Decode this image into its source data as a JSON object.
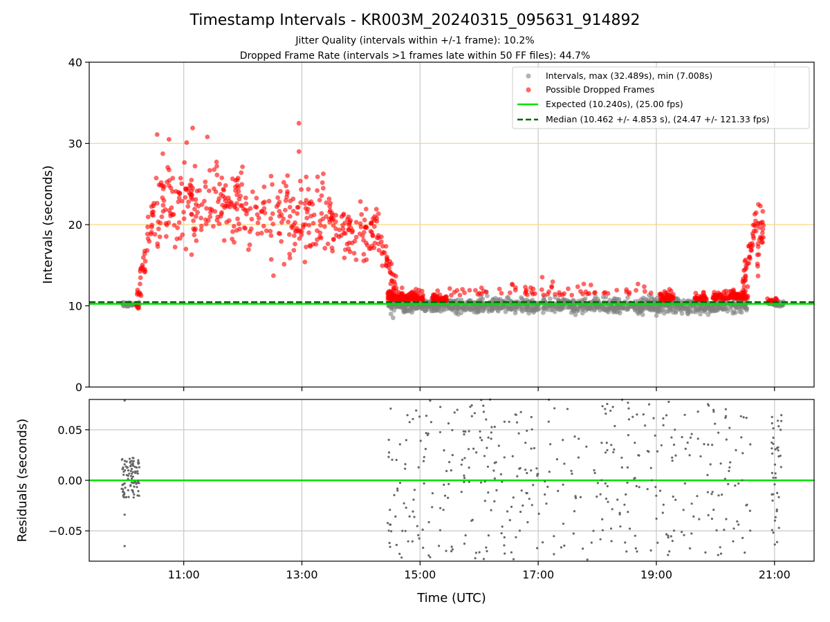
{
  "title": "Timestamp Intervals - KR003M_20240315_095631_914892",
  "subtitle_1": "Jitter Quality (intervals within +/-1 frame): 10.2%",
  "subtitle_2": "Dropped Frame Rate (intervals >1 frames late within 50 FF files): 44.7%",
  "colors": {
    "interval_points": "#808080",
    "dropped_points": "#ff0000",
    "expected_line": "#00e000",
    "median_line": "#006400",
    "threshold_lines": "#ffd27f",
    "grid": "#c8c8c8"
  },
  "chart_data": [
    {
      "type": "scatter",
      "panel": "intervals",
      "ylabel": "Intervals (seconds)",
      "ylim": [
        0,
        40
      ],
      "yticks": [
        "0",
        "10",
        "20",
        "30",
        "40"
      ],
      "ytick_values": [
        0,
        10,
        20,
        30,
        40
      ],
      "xlim_hours": [
        9.4,
        21.67
      ],
      "xtick_values_hours": [
        11,
        13,
        15,
        17,
        19,
        21
      ],
      "xticks": [
        "11:00",
        "13:00",
        "15:00",
        "17:00",
        "19:00",
        "21:00"
      ],
      "x_grid": true,
      "y_grid": false,
      "reference_lines": [
        {
          "y": 10.24,
          "style": "solid",
          "color": "#00e000",
          "label": "Expected (10.240s), (25.00 fps)"
        },
        {
          "y": 10.462,
          "style": "dashed",
          "color": "#006400",
          "label": "Median (10.462 +/- 4.853 s), (24.47 +/- 121.33 fps)"
        },
        {
          "y": 20,
          "style": "solid",
          "color": "#ffd27f",
          "label": ""
        },
        {
          "y": 30,
          "style": "solid",
          "color": "#ffd27f",
          "label": ""
        }
      ],
      "legend": {
        "placement": "top-right",
        "entries": [
          {
            "marker": "circle",
            "color": "#808080",
            "label": "Intervals, max (32.489s), min (7.008s)"
          },
          {
            "marker": "circle",
            "color": "#ff0000",
            "label": "Possible Dropped Frames"
          },
          {
            "marker": "line",
            "color": "#00e000",
            "label": "Expected (10.240s), (25.00 fps)"
          },
          {
            "marker": "dashed-line",
            "color": "#006400",
            "label": "Median (10.462 +/- 4.853 s), (24.47 +/- 121.33 fps)"
          }
        ]
      },
      "series": [
        {
          "name": "Intervals, max (32.489s), min (7.008s)",
          "segments": [
            {
              "x_start": 9.95,
              "x_end": 10.25,
              "mean": 10.2,
              "spread": 0.25,
              "count": 40
            },
            {
              "x_start": 14.45,
              "x_end": 20.55,
              "mean": 10.0,
              "spread": 0.9,
              "count": 1100
            },
            {
              "x_start": 20.9,
              "x_end": 21.15,
              "mean": 10.2,
              "spread": 0.3,
              "count": 40
            }
          ],
          "max": 32.489,
          "min": 7.008
        },
        {
          "name": "Possible Dropped Frames",
          "segments": [
            {
              "shape": "ramp",
              "x_start": 10.2,
              "x_end": 10.5,
              "y_start": 10.5,
              "y_end": 22,
              "spread": 2.5,
              "count": 45
            },
            {
              "shape": "plateau",
              "x_start": 10.5,
              "x_end": 12.0,
              "mean": 22.5,
              "spread": 3.5,
              "count": 180
            },
            {
              "shape": "plateau",
              "x_start": 12.0,
              "x_end": 13.5,
              "mean": 21.0,
              "spread": 3.0,
              "count": 150
            },
            {
              "shape": "plateau",
              "x_start": 13.5,
              "x_end": 14.3,
              "mean": 19.0,
              "spread": 2.5,
              "count": 90
            },
            {
              "shape": "ramp",
              "x_start": 14.3,
              "x_end": 14.6,
              "y_start": 18,
              "y_end": 12,
              "spread": 1.5,
              "count": 35
            },
            {
              "shape": "cluster",
              "x_start": 14.45,
              "x_end": 15.05,
              "mean": 10.9,
              "spread": 0.7,
              "count": 150
            },
            {
              "shape": "cluster",
              "x_start": 15.2,
              "x_end": 15.45,
              "mean": 10.7,
              "spread": 0.5,
              "count": 50
            },
            {
              "shape": "sparse",
              "x_start": 15.5,
              "x_end": 19.0,
              "mean": 11.5,
              "spread": 0.8,
              "count": 70
            },
            {
              "shape": "cluster",
              "x_start": 19.05,
              "x_end": 19.3,
              "mean": 10.8,
              "spread": 0.6,
              "count": 50
            },
            {
              "shape": "cluster",
              "x_start": 19.65,
              "x_end": 19.85,
              "mean": 10.8,
              "spread": 0.5,
              "count": 35
            },
            {
              "shape": "cluster",
              "x_start": 19.95,
              "x_end": 20.25,
              "mean": 10.9,
              "spread": 0.6,
              "count": 45
            },
            {
              "shape": "cluster",
              "x_start": 20.25,
              "x_end": 20.55,
              "mean": 11.0,
              "spread": 0.7,
              "count": 60
            },
            {
              "shape": "ramp",
              "x_start": 20.45,
              "x_end": 20.7,
              "y_start": 12,
              "y_end": 21,
              "spread": 1.8,
              "count": 40
            },
            {
              "shape": "plateau",
              "x_start": 20.7,
              "x_end": 20.82,
              "mean": 18.0,
              "spread": 3.0,
              "count": 25
            },
            {
              "shape": "cluster",
              "x_start": 20.88,
              "x_end": 21.05,
              "mean": 10.5,
              "spread": 0.3,
              "count": 20
            }
          ],
          "outliers": [
            [
              10.55,
              31.1
            ],
            [
              10.75,
              30.5
            ],
            [
              11.15,
              31.9
            ],
            [
              11.4,
              30.8
            ],
            [
              12.95,
              32.489
            ],
            [
              11.05,
              30.1
            ],
            [
              12.95,
              29.0
            ]
          ]
        }
      ]
    },
    {
      "type": "scatter",
      "panel": "residuals",
      "xlabel": "Time (UTC)",
      "ylabel": "Residuals (seconds)",
      "ylim": [
        -0.08,
        0.08
      ],
      "yticks": [
        "−0.05",
        "0.00",
        "0.05"
      ],
      "ytick_values": [
        -0.05,
        0.0,
        0.05
      ],
      "xlim_hours": [
        9.4,
        21.67
      ],
      "xtick_values_hours": [
        11,
        13,
        15,
        17,
        19,
        21
      ],
      "xticks": [
        "11:00",
        "13:00",
        "15:00",
        "17:00",
        "19:00",
        "21:00"
      ],
      "x_grid": true,
      "y_grid": true,
      "reference_lines": [
        {
          "y": 0,
          "style": "solid",
          "color": "#00e000",
          "label": ""
        }
      ],
      "series": [
        {
          "name": "",
          "segments": [
            {
              "x_start": 9.95,
              "x_end": 10.25,
              "mean": 0.003,
              "spread": 0.02,
              "count": 90
            },
            {
              "x_start": 14.45,
              "x_end": 20.6,
              "mean": 0.0,
              "spread": 0.075,
              "count": 420
            },
            {
              "x_start": 20.95,
              "x_end": 21.12,
              "mean": 0.0,
              "spread": 0.06,
              "count": 40
            }
          ],
          "outliers": [
            [
              10.0,
              0.079
            ],
            [
              10.0,
              -0.065
            ],
            [
              10.0,
              -0.034
            ],
            [
              14.7,
              -0.05
            ],
            [
              14.75,
              0.016
            ]
          ]
        }
      ]
    }
  ]
}
